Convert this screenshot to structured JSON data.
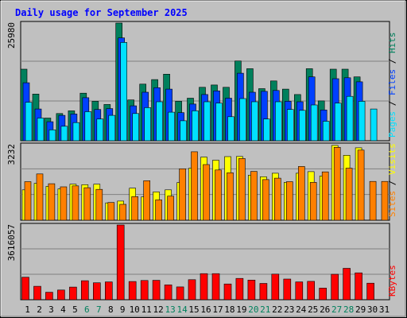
{
  "chart_data": {
    "type": "bar",
    "title": "Daily usage for September 2025",
    "categories": [
      "1",
      "2",
      "3",
      "4",
      "5",
      "6",
      "7",
      "8",
      "9",
      "10",
      "11",
      "12",
      "13",
      "14",
      "15",
      "16",
      "17",
      "18",
      "19",
      "20",
      "21",
      "22",
      "23",
      "24",
      "25",
      "26",
      "27",
      "28",
      "29",
      "30",
      "31"
    ],
    "weekend_days": [
      "6",
      "7",
      "13",
      "14",
      "20",
      "21",
      "27",
      "28"
    ],
    "colors": {
      "hits": "#00805c",
      "files": "#0040ff",
      "pages": "#00e0ff",
      "visits": "#ffff00",
      "sites": "#ff8000",
      "kbytes": "#ff0000",
      "weekday_label": "#000000",
      "weekend_label": "#00805c",
      "title": "#0000ff",
      "plot_bg": "#c0c0c0",
      "frame_bg": "#c0c0c0"
    },
    "panels": [
      {
        "id": "hits",
        "ymax_label": "25980",
        "ymax": 25980,
        "right_label_parts": [
          {
            "text": "Pages",
            "color": "#00e0ff"
          },
          {
            "text": " / ",
            "color": "#000000"
          },
          {
            "text": "Files",
            "color": "#0040ff"
          },
          {
            "text": " / ",
            "color": "#000000"
          },
          {
            "text": "Hits",
            "color": "#00805c"
          }
        ],
        "series": [
          {
            "name": "Hits",
            "color": "#00805c",
            "values": [
              15800,
              10300,
              5000,
              6000,
              6600,
              10500,
              8700,
              8000,
              25980,
              9000,
              12500,
              13500,
              14700,
              8700,
              9400,
              11800,
              12300,
              11800,
              17600,
              15900,
              11500,
              13200,
              11400,
              10200,
              15900,
              8800,
              15800,
              15800,
              14100,
              0,
              0
            ]
          },
          {
            "name": "Files",
            "color": "#0040ff",
            "values": [
              12800,
              7000,
              4200,
              5600,
              5900,
              9500,
              6900,
              7100,
              22700,
              7700,
              10700,
              11700,
              11400,
              6200,
              8100,
              10200,
              11000,
              9400,
              14900,
              10700,
              10900,
              11100,
              8700,
              8600,
              14100,
              6800,
              13700,
              13900,
              13000,
              0,
              0
            ]
          },
          {
            "name": "Pages",
            "color": "#00e0ff",
            "values": [
              8500,
              5000,
              2400,
              3200,
              4000,
              6400,
              4800,
              5600,
              21700,
              6000,
              7300,
              8600,
              6300,
              4400,
              6600,
              8600,
              8300,
              5300,
              9300,
              8600,
              4800,
              8600,
              6900,
              6700,
              7900,
              4300,
              8300,
              9800,
              8700,
              7000,
              0
            ]
          }
        ]
      },
      {
        "id": "visits",
        "ymax_label": "3232",
        "ymax": 3232,
        "right_label_parts": [
          {
            "text": "Sites",
            "color": "#ff8000"
          },
          {
            "text": " / ",
            "color": "#000000"
          },
          {
            "text": "Visits",
            "color": "#ffff00"
          }
        ],
        "series": [
          {
            "name": "Visits",
            "color": "#ffff00",
            "values": [
              1300,
              1580,
              1450,
              1340,
              1540,
              1520,
              1540,
              740,
              820,
              1370,
              1000,
              1210,
              1300,
              1610,
              2230,
              2700,
              2570,
              2720,
              2730,
              1930,
              1860,
              2010,
              1620,
              2010,
              2080,
              1890,
              3200,
              2780,
              3100,
              0,
              0
            ]
          },
          {
            "name": "Sites",
            "color": "#ff8000",
            "values": [
              1650,
              1980,
              1560,
              1430,
              1470,
              1390,
              1320,
              760,
              680,
              1010,
              1690,
              870,
              1030,
              2200,
              2930,
              2380,
              2150,
              2030,
              2640,
              2090,
              1740,
              1800,
              1650,
              2300,
              1620,
              2070,
              3120,
              2230,
              3000,
              1660,
              1660
            ]
          }
        ]
      },
      {
        "id": "kbytes",
        "ymax_label": "3616057",
        "ymax": 3616057,
        "right_label_parts": [
          {
            "text": "KBytes",
            "color": "#ff0000"
          }
        ],
        "series": [
          {
            "name": "KBytes",
            "color": "#ff0000",
            "values": [
              1090000,
              650000,
              360000,
              470000,
              610000,
              920000,
              820000,
              860000,
              3616057,
              880000,
              930000,
              940000,
              720000,
              620000,
              970000,
              1260000,
              1260000,
              760000,
              1030000,
              950000,
              790000,
              1240000,
              1000000,
              860000,
              890000,
              560000,
              1230000,
              1520000,
              1300000,
              800000,
              0
            ]
          }
        ]
      }
    ]
  }
}
